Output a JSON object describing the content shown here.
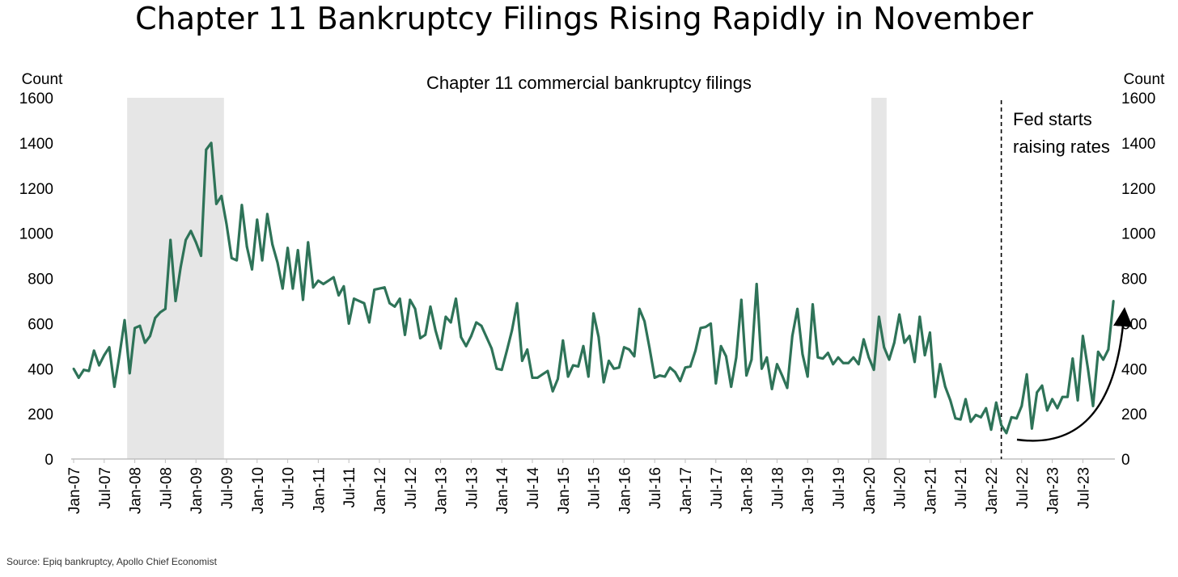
{
  "title": "Chapter 11 Bankruptcy Filings Rising Rapidly in November",
  "source": "Source: Epiq bankruptcy, Apollo Chief Economist",
  "colors": {
    "line": "#2e7358",
    "shade": "#e6e6e6",
    "text": "#000000",
    "axis": "#bfbfbf"
  },
  "chart_data": {
    "type": "line",
    "title": "Chapter 11 commercial bankruptcy filings",
    "ylabel_left": "Count",
    "ylabel_right": "Count",
    "ylim": [
      0,
      1600
    ],
    "yticks": [
      0,
      200,
      400,
      600,
      800,
      1000,
      1200,
      1400,
      1600
    ],
    "x_start": "Jan-07",
    "x_step": "1 month",
    "x_ticks": [
      "Jan-07",
      "Jul-07",
      "Jan-08",
      "Jul-08",
      "Jan-09",
      "Jul-09",
      "Jan-10",
      "Jul-10",
      "Jan-11",
      "Jul-11",
      "Jan-12",
      "Jul-12",
      "Jan-13",
      "Jul-13",
      "Jan-14",
      "Jul-14",
      "Jan-15",
      "Jul-15",
      "Jan-16",
      "Jul-16",
      "Jan-17",
      "Jul-17",
      "Jan-18",
      "Jul-18",
      "Jan-19",
      "Jul-19",
      "Jan-20",
      "Jul-20",
      "Jan-21",
      "Jul-21",
      "Jan-22",
      "Jul-22",
      "Jan-23",
      "Jul-23"
    ],
    "recessions": [
      {
        "start": "Dec-07",
        "end": "Jun-09"
      },
      {
        "start": "Feb-20",
        "end": "Apr-20"
      }
    ],
    "annotation": {
      "lines": [
        "Fed starts",
        "raising rates"
      ],
      "at": "Mar-22"
    },
    "grid": false,
    "legend": "none",
    "series": [
      {
        "values": [
          400,
          360,
          395,
          390,
          480,
          415,
          460,
          495,
          320,
          460,
          615,
          380,
          580,
          590,
          515,
          545,
          625,
          650,
          665,
          970,
          700,
          850,
          970,
          1010,
          960,
          900,
          1370,
          1400,
          1130,
          1165,
          1040,
          890,
          880,
          1125,
          940,
          840,
          1060,
          880,
          1085,
          950,
          870,
          755,
          935,
          755,
          925,
          705,
          960,
          760,
          790,
          775,
          790,
          805,
          725,
          765,
          600,
          710,
          700,
          690,
          605,
          750,
          755,
          760,
          690,
          675,
          710,
          550,
          705,
          665,
          535,
          550,
          675,
          570,
          490,
          630,
          605,
          710,
          540,
          500,
          545,
          605,
          590,
          540,
          490,
          400,
          395,
          480,
          570,
          690,
          435,
          485,
          360,
          360,
          375,
          390,
          300,
          355,
          525,
          365,
          415,
          410,
          500,
          365,
          645,
          540,
          340,
          435,
          400,
          405,
          495,
          485,
          455,
          665,
          610,
          490,
          360,
          370,
          365,
          405,
          385,
          345,
          405,
          410,
          480,
          580,
          585,
          600,
          335,
          500,
          455,
          320,
          450,
          705,
          370,
          440,
          775,
          400,
          450,
          310,
          420,
          370,
          315,
          545,
          665,
          465,
          365,
          685,
          450,
          445,
          470,
          420,
          450,
          425,
          425,
          450,
          420,
          530,
          450,
          395,
          630,
          495,
          440,
          515,
          640,
          515,
          545,
          430,
          630,
          460,
          560,
          275,
          420,
          320,
          260,
          180,
          175,
          265,
          165,
          195,
          185,
          225,
          130,
          250,
          150,
          115,
          185,
          180,
          235,
          375,
          135,
          295,
          325,
          215,
          265,
          225,
          275,
          275,
          445,
          260,
          545,
          400,
          235,
          475,
          440,
          485,
          700
        ]
      }
    ]
  }
}
